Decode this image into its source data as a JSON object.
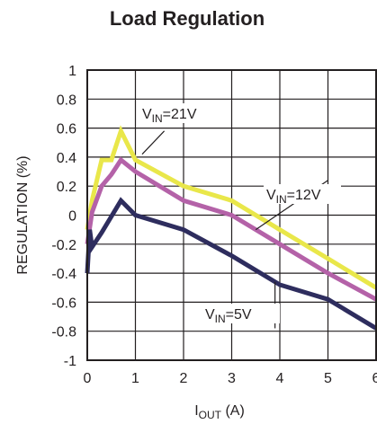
{
  "chart_data": {
    "type": "line",
    "title": "Load Regulation",
    "xlabel": {
      "main": "I",
      "sub": "OUT",
      "rest": " (A)"
    },
    "ylabel": "REGULATION (%)",
    "xlim": [
      0,
      6
    ],
    "ylim": [
      -1,
      1
    ],
    "x_ticks": [
      "0",
      "1",
      "2",
      "3",
      "4",
      "5",
      "6"
    ],
    "y_ticks": [
      "1",
      "0.8",
      "0.6",
      "0.4",
      "0.2",
      "0",
      "-0.2",
      "-0.4",
      "-0.6",
      "-0.8",
      "-1"
    ],
    "grid": true,
    "series": [
      {
        "name": {
          "main": "V",
          "sub": "IN",
          "rest": "=21V"
        },
        "color": "#e9e74a",
        "points": [
          [
            0,
            -0.1
          ],
          [
            0.1,
            0.1
          ],
          [
            0.3,
            0.38
          ],
          [
            0.5,
            0.38
          ],
          [
            0.7,
            0.58
          ],
          [
            1,
            0.38
          ],
          [
            2,
            0.2
          ],
          [
            3,
            0.1
          ],
          [
            4,
            -0.1
          ],
          [
            5,
            -0.3
          ],
          [
            6,
            -0.5
          ]
        ]
      },
      {
        "name": {
          "main": "V",
          "sub": "IN",
          "rest": "=12V"
        },
        "color": "#b462a8",
        "points": [
          [
            0,
            -0.2
          ],
          [
            0.1,
            0.02
          ],
          [
            0.3,
            0.2
          ],
          [
            0.5,
            0.28
          ],
          [
            0.7,
            0.38
          ],
          [
            1,
            0.3
          ],
          [
            2,
            0.1
          ],
          [
            3,
            0.0
          ],
          [
            4,
            -0.2
          ],
          [
            5,
            -0.4
          ],
          [
            6,
            -0.58
          ]
        ]
      },
      {
        "name": {
          "main": "V",
          "sub": "IN",
          "rest": "=5V"
        },
        "color": "#2e2d5e",
        "points": [
          [
            0,
            -0.4
          ],
          [
            0.05,
            -0.1
          ],
          [
            0.1,
            -0.22
          ],
          [
            0.3,
            -0.12
          ],
          [
            0.7,
            0.1
          ],
          [
            1,
            0.0
          ],
          [
            2,
            -0.1
          ],
          [
            3,
            -0.28
          ],
          [
            4,
            -0.48
          ],
          [
            5,
            -0.58
          ],
          [
            6,
            -0.78
          ]
        ]
      }
    ]
  }
}
